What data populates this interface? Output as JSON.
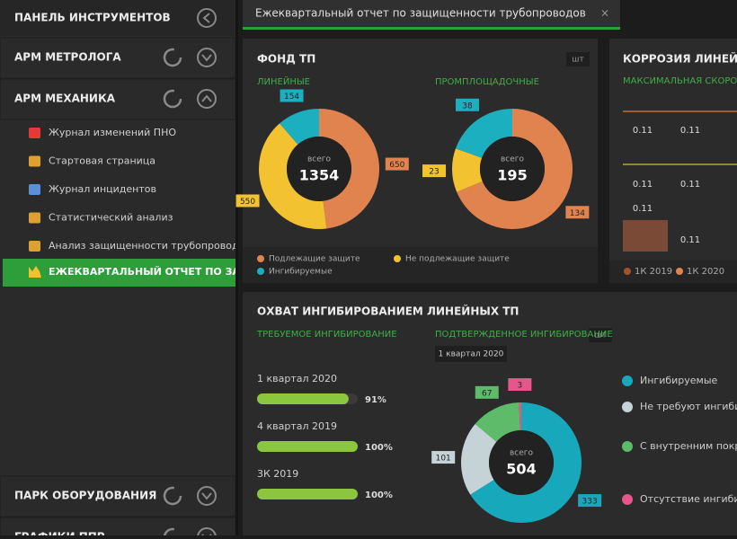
{
  "tab": {
    "title": "Ежеквартальный отчет по защищенности трубопроводов",
    "close": "×"
  },
  "sidebar": {
    "title": "ПАНЕЛЬ ИНСТРУМЕНТОВ",
    "sections": [
      "АРМ МЕТРОЛОГА",
      "АРМ МЕХАНИКА"
    ],
    "items": [
      "Журнал изменений ПНО",
      "Стартовая страница",
      "Журнал инцидентов",
      "Статистический анализ",
      "Анализ защищенности трубопроводов"
    ],
    "active_item": "ЕЖЕКВАРТАЛЬНЫЙ ОТЧЕТ ПО ЗАЩИЩЕННОСТИ ТРУБОПРОВОДОВ",
    "bottom_sections": [
      "ПАРК ОБОРУДОВАНИЯ",
      "ГРАФИКИ ППР"
    ]
  },
  "panels": {
    "fund": {
      "title": "ФОНД ТП",
      "unit": "шт"
    },
    "corrosion": {
      "title": "КОРРОЗИЯ ЛИНЕЙНЫХ ТП",
      "subtitle": "МАКСИМАЛЬНАЯ СКОРОСТЬ КОРРОЗИИ",
      "labels": [
        "0.11",
        "0.11",
        "0.11",
        "0.11",
        "0.11",
        "0.11"
      ],
      "legend": [
        "1К 2019",
        "1К 2020"
      ]
    },
    "inhibition": {
      "title": "ОХВАТ ИНГИБИРОВАНИЕМ ЛИНЕЙНЫХ ТП",
      "unit": "шт"
    }
  },
  "chart_data": [
    {
      "type": "donut",
      "subtitle": "ЛИНЕЙНЫЕ",
      "center_label": "всего",
      "total": 1354,
      "categories": [
        "Подлежащие защите",
        "Не подлежащие защите",
        "Ингибируемые"
      ],
      "colors": [
        "#e0834f",
        "#f2c230",
        "#1cafc0"
      ],
      "values": [
        650,
        550,
        154
      ]
    },
    {
      "type": "donut",
      "subtitle": "ПРОМПЛОЩАДОЧНЫЕ",
      "center_label": "всего",
      "total": 195,
      "colors": [
        "#e0834f",
        "#f2c230",
        "#1cafc0"
      ],
      "values": [
        134,
        23,
        38
      ]
    },
    {
      "type": "progress",
      "subtitle": "ТРЕБУЕМОЕ ИНГИБИРОВАНИЕ",
      "categories": [
        "1 квартал 2020",
        "4 квартал 2019",
        "3К 2019"
      ],
      "values": [
        91,
        100,
        100
      ],
      "value_labels": [
        "91%",
        "100%",
        "100%"
      ],
      "xlim": [
        0,
        100
      ],
      "color": "#8cc63f"
    },
    {
      "type": "donut",
      "subtitle": "ПОДТВЕРЖДЕННОЕ ИНГИБИРОВАНИЕ",
      "period": "1 квартал 2020",
      "center_label": "всего",
      "total": 504,
      "categories": [
        "Ингибируемые",
        "Не требуют ингибирования",
        "С внутренним покрытием трубы",
        "Отсутствие ингибирования"
      ],
      "colors": [
        "#17a9bb",
        "#c5d3d6",
        "#5dbb6a",
        "#e5578a"
      ],
      "values": [
        333,
        101,
        67,
        3
      ]
    }
  ]
}
